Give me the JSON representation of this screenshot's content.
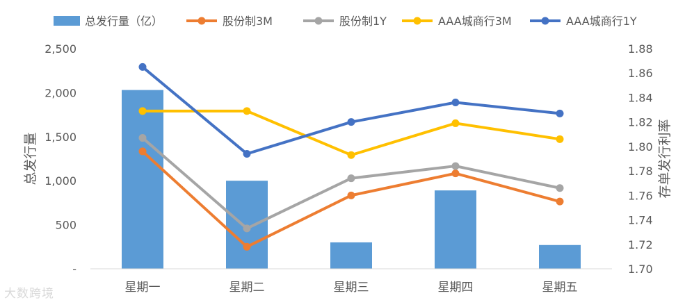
{
  "chart_data": {
    "type": "bar+line",
    "categories": [
      "星期一",
      "星期二",
      "星期三",
      "星期四",
      "星期五"
    ],
    "bar_series": {
      "name": "总发行量（亿）",
      "values": [
        2030,
        1000,
        300,
        890,
        270
      ],
      "color": "#5B9BD5",
      "axis": "left"
    },
    "line_series": [
      {
        "name": "股份制3M",
        "values": [
          1.796,
          1.718,
          1.76,
          1.778,
          1.755
        ],
        "color": "#ED7D31",
        "axis": "right"
      },
      {
        "name": "股份制1Y",
        "values": [
          1.807,
          1.733,
          1.774,
          1.784,
          1.766
        ],
        "color": "#A5A5A5",
        "axis": "right"
      },
      {
        "name": "AAA城商行3M",
        "values": [
          1.829,
          1.829,
          1.793,
          1.819,
          1.806
        ],
        "color": "#FFC000",
        "axis": "right"
      },
      {
        "name": "AAA城商行1Y",
        "values": [
          1.865,
          1.794,
          1.82,
          1.836,
          1.827
        ],
        "color": "#4472C4",
        "axis": "right"
      }
    ],
    "ylabel_left": "总发行量",
    "ylabel_right": "存单发行利率",
    "ylim_left": [
      0,
      2500
    ],
    "yticks_left": [
      "-",
      "500",
      "1,000",
      "1,500",
      "2,000",
      "2,500"
    ],
    "ylim_right": [
      1.7,
      1.88
    ],
    "yticks_right": [
      "1.70",
      "1.72",
      "1.74",
      "1.76",
      "1.78",
      "1.80",
      "1.82",
      "1.84",
      "1.86",
      "1.88"
    ],
    "grid": false,
    "legend_position": "top"
  },
  "watermark": "大数跨境"
}
